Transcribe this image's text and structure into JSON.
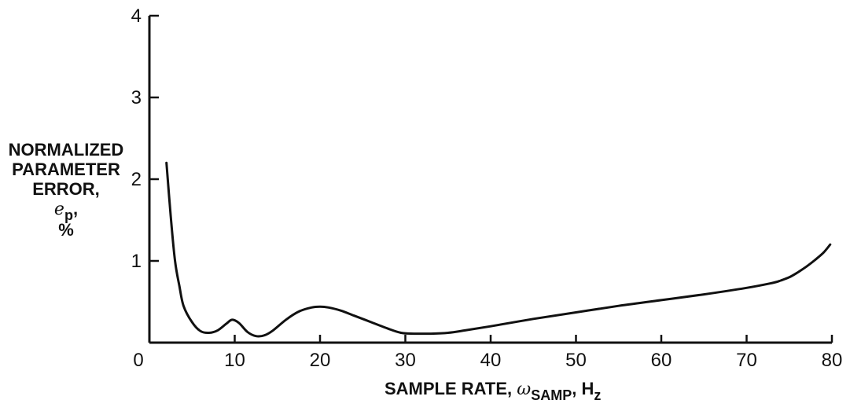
{
  "chart_data": {
    "type": "line",
    "xlabel": {
      "prefix": "SAMPLE RATE,",
      "symbol": "ω",
      "symbol_sub": "SAMP",
      "sep": ",",
      "unit": "H",
      "unit_sub": "z"
    },
    "ylabel": {
      "lines": [
        "NORMALIZED",
        "PARAMETER",
        "ERROR,"
      ],
      "symbol": "e",
      "symbol_sub": "p",
      "symbol_sep": ",",
      "unit": "%"
    },
    "xlim": [
      0,
      80
    ],
    "ylim": [
      0,
      4
    ],
    "x_ticks": [
      0,
      10,
      20,
      30,
      40,
      50,
      60,
      70,
      80
    ],
    "y_ticks": [
      1,
      2,
      3,
      4
    ],
    "x_tick_labels": [
      "0",
      "10",
      "20",
      "30",
      "40",
      "50",
      "60",
      "70",
      "80"
    ],
    "y_tick_labels": [
      "1",
      "2",
      "3",
      "4"
    ],
    "grid": false,
    "series": [
      {
        "color": "#111111",
        "x": [
          2,
          2.5,
          3,
          3.5,
          4,
          5,
          6,
          7,
          8,
          9,
          9.7,
          10.5,
          11.5,
          12.5,
          13.5,
          14.5,
          16,
          17.5,
          19,
          20,
          21,
          22.5,
          24,
          26,
          28,
          29.5,
          31,
          33,
          35,
          37,
          40,
          45,
          50,
          55,
          60,
          65,
          70,
          73,
          74,
          75,
          76,
          77,
          78,
          79,
          79.8
        ],
        "y": [
          2.2,
          1.55,
          1.0,
          0.7,
          0.45,
          0.25,
          0.14,
          0.12,
          0.15,
          0.23,
          0.28,
          0.24,
          0.13,
          0.08,
          0.09,
          0.15,
          0.28,
          0.38,
          0.43,
          0.44,
          0.43,
          0.39,
          0.33,
          0.25,
          0.17,
          0.12,
          0.11,
          0.11,
          0.12,
          0.15,
          0.2,
          0.29,
          0.37,
          0.45,
          0.52,
          0.59,
          0.67,
          0.73,
          0.76,
          0.8,
          0.86,
          0.93,
          1.01,
          1.1,
          1.2
        ]
      }
    ]
  }
}
